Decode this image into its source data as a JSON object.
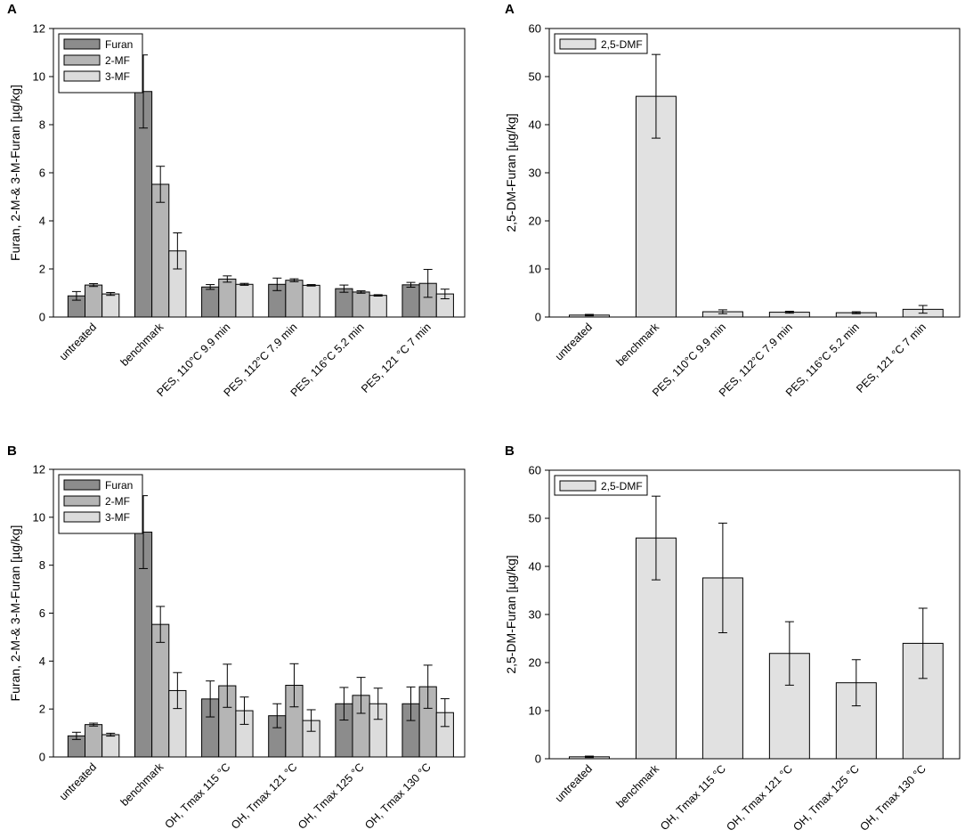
{
  "figure": {
    "panels": [
      "A",
      "A",
      "B",
      "B"
    ]
  },
  "colors": {
    "Furan": "#8c8c8c",
    "2-MF": "#b5b5b5",
    "3-MF": "#dcdcdc",
    "2,5-DMF": "#e1e1e1",
    "axis": "#000000"
  },
  "chart_data": [
    {
      "panel": "A",
      "type": "bar",
      "ylabel": "Furan, 2-M-& 3-M-Furan [µg/kg]",
      "xlabel": "",
      "ylim": [
        0,
        12
      ],
      "yticks": [
        0,
        2,
        4,
        6,
        8,
        10,
        12
      ],
      "legend": "top-left",
      "categories": [
        "untreated",
        "benchmark",
        "PES, 110°C 9.9 min",
        "PES, 112°C 7.9 min",
        "PES, 116°C 5.2 min",
        "PES, 121 °C 7 min"
      ],
      "series": [
        {
          "name": "Furan",
          "values": [
            0.88,
            9.38,
            1.25,
            1.36,
            1.18,
            1.34
          ],
          "errors": [
            0.18,
            1.52,
            0.1,
            0.26,
            0.15,
            0.1
          ]
        },
        {
          "name": "2-MF",
          "values": [
            1.33,
            5.52,
            1.58,
            1.53,
            1.04,
            1.4
          ],
          "errors": [
            0.06,
            0.75,
            0.13,
            0.06,
            0.05,
            0.58
          ]
        },
        {
          "name": "3-MF",
          "values": [
            0.96,
            2.75,
            1.36,
            1.32,
            0.9,
            0.96
          ],
          "errors": [
            0.06,
            0.75,
            0.04,
            0.03,
            0.03,
            0.2
          ]
        }
      ]
    },
    {
      "panel": "A",
      "type": "bar",
      "ylabel": "2,5-DM-Furan [µg/kg]",
      "xlabel": "",
      "ylim": [
        0,
        60
      ],
      "yticks": [
        0,
        10,
        20,
        30,
        40,
        50,
        60
      ],
      "legend": "top-left",
      "categories": [
        "untreated",
        "benchmark",
        "PES, 110°C 9.9 min",
        "PES, 112°C 7.9 min",
        "PES, 116°C 5.2 min",
        "PES, 121 °C 7 min"
      ],
      "series": [
        {
          "name": "2,5-DMF",
          "values": [
            0.4,
            45.9,
            1.1,
            1.0,
            0.9,
            1.6
          ],
          "errors": [
            0.15,
            8.7,
            0.4,
            0.2,
            0.2,
            0.8
          ]
        }
      ]
    },
    {
      "panel": "B",
      "type": "bar",
      "ylabel": "Furan, 2-M-& 3-M-Furan [µg/kg]",
      "xlabel": "",
      "ylim": [
        0,
        12
      ],
      "yticks": [
        0,
        2,
        4,
        6,
        8,
        10,
        12
      ],
      "legend": "top-left",
      "categories": [
        "untreated",
        "benchmark",
        "OH, Tmax 115 °C",
        "OH, Tmax 121 °C",
        "OH, Tmax 125 °C",
        "OH, Tmax 130 °C"
      ],
      "series": [
        {
          "name": "Furan",
          "values": [
            0.88,
            9.38,
            2.42,
            1.72,
            2.22,
            2.22
          ],
          "errors": [
            0.15,
            1.52,
            0.75,
            0.5,
            0.68,
            0.7
          ]
        },
        {
          "name": "2-MF",
          "values": [
            1.35,
            5.53,
            2.97,
            2.99,
            2.57,
            2.93
          ],
          "errors": [
            0.06,
            0.75,
            0.9,
            0.9,
            0.75,
            0.9
          ]
        },
        {
          "name": "3-MF",
          "values": [
            0.93,
            2.77,
            1.93,
            1.52,
            2.22,
            1.85
          ],
          "errors": [
            0.06,
            0.75,
            0.57,
            0.45,
            0.65,
            0.58
          ]
        }
      ]
    },
    {
      "panel": "B",
      "type": "bar",
      "ylabel": "2,5-DM-Furan [µg/kg]",
      "xlabel": "",
      "ylim": [
        0,
        60
      ],
      "yticks": [
        0,
        10,
        20,
        30,
        40,
        50,
        60
      ],
      "legend": "top-left",
      "categories": [
        "untreated",
        "benchmark",
        "OH, Tmax 115 °C",
        "OH, Tmax 121 °C",
        "OH, Tmax 125 °C",
        "OH, Tmax 130 °C"
      ],
      "series": [
        {
          "name": "2,5-DMF",
          "values": [
            0.4,
            45.9,
            37.6,
            21.9,
            15.8,
            24.0
          ],
          "errors": [
            0.15,
            8.7,
            11.4,
            6.6,
            4.8,
            7.3
          ]
        }
      ]
    }
  ]
}
